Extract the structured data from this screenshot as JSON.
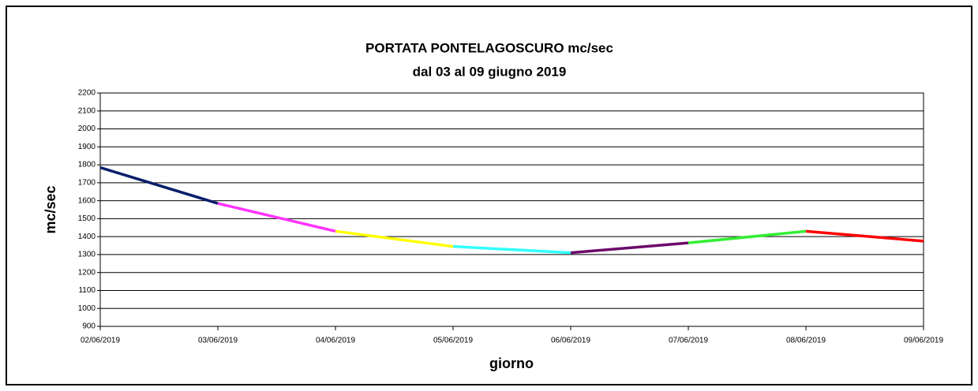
{
  "chart_data": {
    "type": "line",
    "title": "PORTATA PONTELAGOSCURO mc/sec",
    "subtitle": "dal 03 al 09 giugno  2019",
    "x_label": "giorno",
    "y_label": "mc/sec",
    "categories": [
      "02/06/2019",
      "03/06/2019",
      "04/06/2019",
      "05/06/2019",
      "06/06/2019",
      "07/06/2019",
      "08/06/2019",
      "09/06/2019"
    ],
    "values": [
      1785,
      1585,
      1430,
      1345,
      1310,
      1365,
      1430,
      1375
    ],
    "segment_colors": [
      "#0a1f6b",
      "#ff33ff",
      "#ffff00",
      "#33ffff",
      "#6b0a6b",
      "#33ee33",
      "#ff0000"
    ],
    "ylim": [
      900,
      2200
    ],
    "yticks": [
      900,
      1000,
      1100,
      1200,
      1300,
      1400,
      1500,
      1600,
      1700,
      1800,
      1900,
      2000,
      2100,
      2200
    ],
    "grid": true
  }
}
